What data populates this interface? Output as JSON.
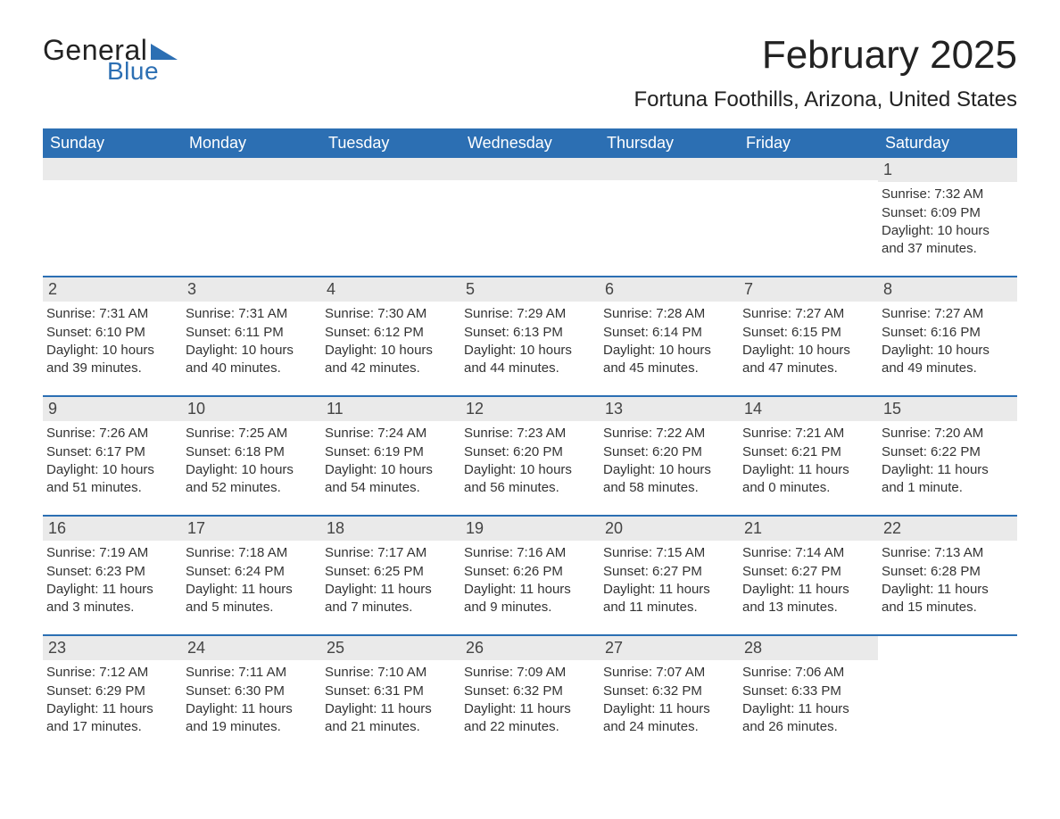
{
  "logo": {
    "word1": "General",
    "word2": "Blue",
    "triangle_color": "#2c6fb3",
    "text_dark_color": "#222222",
    "text_blue_color": "#2c6fb3"
  },
  "title": "February 2025",
  "location": "Fortuna Foothills, Arizona, United States",
  "colors": {
    "header_bg": "#2c6fb3",
    "header_text": "#ffffff",
    "row_date_bg": "#eaeaea",
    "row_border": "#2c6fb3",
    "body_text": "#333333",
    "page_bg": "#ffffff"
  },
  "typography": {
    "title_fontsize": 44,
    "location_fontsize": 24,
    "weekday_fontsize": 18,
    "daynum_fontsize": 18,
    "body_fontsize": 15,
    "font_family": "Segoe UI, Arial, Helvetica, sans-serif"
  },
  "weekday_labels": [
    "Sunday",
    "Monday",
    "Tuesday",
    "Wednesday",
    "Thursday",
    "Friday",
    "Saturday"
  ],
  "weeks": [
    [
      null,
      null,
      null,
      null,
      null,
      null,
      {
        "day": "1",
        "sunrise": "Sunrise: 7:32 AM",
        "sunset": "Sunset: 6:09 PM",
        "daylight1": "Daylight: 10 hours",
        "daylight2": "and 37 minutes."
      }
    ],
    [
      {
        "day": "2",
        "sunrise": "Sunrise: 7:31 AM",
        "sunset": "Sunset: 6:10 PM",
        "daylight1": "Daylight: 10 hours",
        "daylight2": "and 39 minutes."
      },
      {
        "day": "3",
        "sunrise": "Sunrise: 7:31 AM",
        "sunset": "Sunset: 6:11 PM",
        "daylight1": "Daylight: 10 hours",
        "daylight2": "and 40 minutes."
      },
      {
        "day": "4",
        "sunrise": "Sunrise: 7:30 AM",
        "sunset": "Sunset: 6:12 PM",
        "daylight1": "Daylight: 10 hours",
        "daylight2": "and 42 minutes."
      },
      {
        "day": "5",
        "sunrise": "Sunrise: 7:29 AM",
        "sunset": "Sunset: 6:13 PM",
        "daylight1": "Daylight: 10 hours",
        "daylight2": "and 44 minutes."
      },
      {
        "day": "6",
        "sunrise": "Sunrise: 7:28 AM",
        "sunset": "Sunset: 6:14 PM",
        "daylight1": "Daylight: 10 hours",
        "daylight2": "and 45 minutes."
      },
      {
        "day": "7",
        "sunrise": "Sunrise: 7:27 AM",
        "sunset": "Sunset: 6:15 PM",
        "daylight1": "Daylight: 10 hours",
        "daylight2": "and 47 minutes."
      },
      {
        "day": "8",
        "sunrise": "Sunrise: 7:27 AM",
        "sunset": "Sunset: 6:16 PM",
        "daylight1": "Daylight: 10 hours",
        "daylight2": "and 49 minutes."
      }
    ],
    [
      {
        "day": "9",
        "sunrise": "Sunrise: 7:26 AM",
        "sunset": "Sunset: 6:17 PM",
        "daylight1": "Daylight: 10 hours",
        "daylight2": "and 51 minutes."
      },
      {
        "day": "10",
        "sunrise": "Sunrise: 7:25 AM",
        "sunset": "Sunset: 6:18 PM",
        "daylight1": "Daylight: 10 hours",
        "daylight2": "and 52 minutes."
      },
      {
        "day": "11",
        "sunrise": "Sunrise: 7:24 AM",
        "sunset": "Sunset: 6:19 PM",
        "daylight1": "Daylight: 10 hours",
        "daylight2": "and 54 minutes."
      },
      {
        "day": "12",
        "sunrise": "Sunrise: 7:23 AM",
        "sunset": "Sunset: 6:20 PM",
        "daylight1": "Daylight: 10 hours",
        "daylight2": "and 56 minutes."
      },
      {
        "day": "13",
        "sunrise": "Sunrise: 7:22 AM",
        "sunset": "Sunset: 6:20 PM",
        "daylight1": "Daylight: 10 hours",
        "daylight2": "and 58 minutes."
      },
      {
        "day": "14",
        "sunrise": "Sunrise: 7:21 AM",
        "sunset": "Sunset: 6:21 PM",
        "daylight1": "Daylight: 11 hours",
        "daylight2": "and 0 minutes."
      },
      {
        "day": "15",
        "sunrise": "Sunrise: 7:20 AM",
        "sunset": "Sunset: 6:22 PM",
        "daylight1": "Daylight: 11 hours",
        "daylight2": "and 1 minute."
      }
    ],
    [
      {
        "day": "16",
        "sunrise": "Sunrise: 7:19 AM",
        "sunset": "Sunset: 6:23 PM",
        "daylight1": "Daylight: 11 hours",
        "daylight2": "and 3 minutes."
      },
      {
        "day": "17",
        "sunrise": "Sunrise: 7:18 AM",
        "sunset": "Sunset: 6:24 PM",
        "daylight1": "Daylight: 11 hours",
        "daylight2": "and 5 minutes."
      },
      {
        "day": "18",
        "sunrise": "Sunrise: 7:17 AM",
        "sunset": "Sunset: 6:25 PM",
        "daylight1": "Daylight: 11 hours",
        "daylight2": "and 7 minutes."
      },
      {
        "day": "19",
        "sunrise": "Sunrise: 7:16 AM",
        "sunset": "Sunset: 6:26 PM",
        "daylight1": "Daylight: 11 hours",
        "daylight2": "and 9 minutes."
      },
      {
        "day": "20",
        "sunrise": "Sunrise: 7:15 AM",
        "sunset": "Sunset: 6:27 PM",
        "daylight1": "Daylight: 11 hours",
        "daylight2": "and 11 minutes."
      },
      {
        "day": "21",
        "sunrise": "Sunrise: 7:14 AM",
        "sunset": "Sunset: 6:27 PM",
        "daylight1": "Daylight: 11 hours",
        "daylight2": "and 13 minutes."
      },
      {
        "day": "22",
        "sunrise": "Sunrise: 7:13 AM",
        "sunset": "Sunset: 6:28 PM",
        "daylight1": "Daylight: 11 hours",
        "daylight2": "and 15 minutes."
      }
    ],
    [
      {
        "day": "23",
        "sunrise": "Sunrise: 7:12 AM",
        "sunset": "Sunset: 6:29 PM",
        "daylight1": "Daylight: 11 hours",
        "daylight2": "and 17 minutes."
      },
      {
        "day": "24",
        "sunrise": "Sunrise: 7:11 AM",
        "sunset": "Sunset: 6:30 PM",
        "daylight1": "Daylight: 11 hours",
        "daylight2": "and 19 minutes."
      },
      {
        "day": "25",
        "sunrise": "Sunrise: 7:10 AM",
        "sunset": "Sunset: 6:31 PM",
        "daylight1": "Daylight: 11 hours",
        "daylight2": "and 21 minutes."
      },
      {
        "day": "26",
        "sunrise": "Sunrise: 7:09 AM",
        "sunset": "Sunset: 6:32 PM",
        "daylight1": "Daylight: 11 hours",
        "daylight2": "and 22 minutes."
      },
      {
        "day": "27",
        "sunrise": "Sunrise: 7:07 AM",
        "sunset": "Sunset: 6:32 PM",
        "daylight1": "Daylight: 11 hours",
        "daylight2": "and 24 minutes."
      },
      {
        "day": "28",
        "sunrise": "Sunrise: 7:06 AM",
        "sunset": "Sunset: 6:33 PM",
        "daylight1": "Daylight: 11 hours",
        "daylight2": "and 26 minutes."
      },
      null
    ]
  ]
}
